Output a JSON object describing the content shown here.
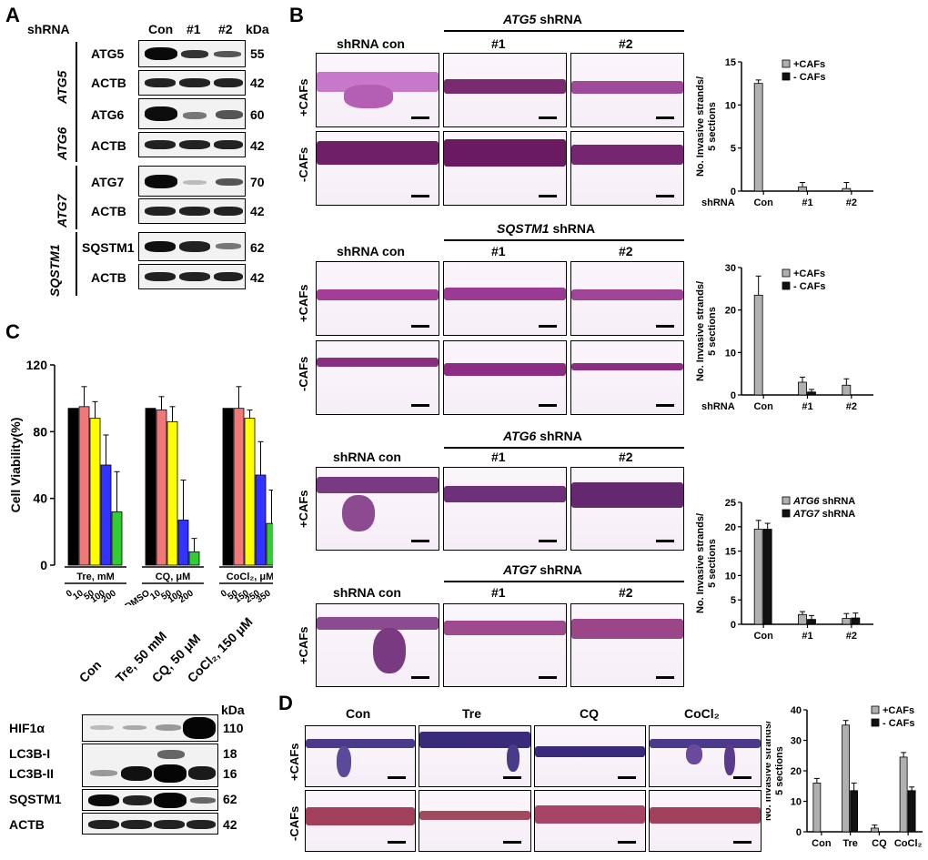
{
  "panels": {
    "A": "A",
    "B": "B",
    "C": "C",
    "D": "D"
  },
  "panel_a": {
    "header": {
      "shrna": "shRNA",
      "con": "Con",
      "n1": "#1",
      "n2": "#2",
      "kda": "kDa"
    },
    "groups": [
      {
        "gene": "ATG5",
        "rows": [
          {
            "label": "ATG5",
            "kda": "55"
          },
          {
            "label": "ACTB",
            "kda": "42"
          }
        ]
      },
      {
        "gene": "ATG6",
        "rows": [
          {
            "label": "ATG6",
            "kda": "60"
          },
          {
            "label": "ACTB",
            "kda": "42"
          }
        ]
      },
      {
        "gene": "ATG7",
        "rows": [
          {
            "label": "ATG7",
            "kda": "70"
          },
          {
            "label": "ACTB",
            "kda": "42"
          }
        ]
      },
      {
        "gene": "SQSTM1",
        "rows": [
          {
            "label": "SQSTM1",
            "kda": "62"
          },
          {
            "label": "ACTB",
            "kda": "42"
          }
        ]
      }
    ]
  },
  "panel_b": {
    "sections": [
      {
        "title_gene": "ATG5",
        "title_suffix": " shRNA",
        "con": "shRNA con",
        "n1": "#1",
        "n2": "#2",
        "row1": "+CAFs",
        "row2": "-CAFs"
      },
      {
        "title_gene": "SQSTM1",
        "title_suffix": " shRNA",
        "con": "shRNA con",
        "n1": "#1",
        "n2": "#2",
        "row1": "+CAFs",
        "row2": "-CAFs"
      },
      {
        "title_gene": "ATG6",
        "title_suffix": " shRNA",
        "con": "shRNA con",
        "n1": "#1",
        "n2": "#2",
        "row1": "+CAFs"
      },
      {
        "title_gene": "ATG7",
        "title_suffix": " shRNA",
        "con": "shRNA con",
        "n1": "#1",
        "n2": "#2",
        "row1": "+CAFs"
      }
    ]
  },
  "panel_c_blot": {
    "lanes": [
      "Con",
      "Tre, 50 mM",
      "CQ, 50 μM",
      "CoCl₂, 150 μM"
    ],
    "kda": "kDa",
    "rows": [
      {
        "label": "HIF1α",
        "kda": "110"
      },
      {
        "label": "LC3B-I",
        "kda": "18"
      },
      {
        "label": "LC3B-II",
        "kda": "16"
      },
      {
        "label": "SQSTM1",
        "kda": "62"
      },
      {
        "label": "ACTB",
        "kda": "42"
      }
    ]
  },
  "panel_d": {
    "columns": [
      "Con",
      "Tre",
      "CQ",
      "CoCl₂"
    ],
    "rows": [
      "+CAFs",
      "-CAFs"
    ]
  },
  "chart_data": [
    {
      "id": "b1",
      "type": "bar",
      "ylabel": "No. Invasive strands/\n5 sections",
      "ylim": [
        0,
        15
      ],
      "yticks": [
        0,
        5,
        10,
        15
      ],
      "xprefix": "shRNA",
      "categories": [
        "Con",
        "#1",
        "#2"
      ],
      "series": [
        {
          "name": "+CAFs",
          "color": "#b0b0b0",
          "values": [
            12.5,
            0.5,
            0.3
          ],
          "errors": [
            0.4,
            0.5,
            0.7
          ]
        },
        {
          "name": "- CAFs",
          "color": "#111111",
          "values": [
            0,
            0,
            0
          ],
          "errors": [
            0,
            0,
            0
          ]
        }
      ],
      "legend": "top-right"
    },
    {
      "id": "b2",
      "type": "bar",
      "ylabel": "No. Invasive strands/\n5 sections",
      "ylim": [
        0,
        30
      ],
      "yticks": [
        0,
        10,
        20,
        30
      ],
      "xprefix": "shRNA",
      "categories": [
        "Con",
        "#1",
        "#2"
      ],
      "series": [
        {
          "name": "+CAFs",
          "color": "#b0b0b0",
          "values": [
            23.5,
            3.0,
            2.3
          ],
          "errors": [
            4.5,
            1.2,
            1.5
          ]
        },
        {
          "name": "- CAFs",
          "color": "#111111",
          "values": [
            0,
            0.7,
            0
          ],
          "errors": [
            0,
            0.6,
            0
          ]
        }
      ],
      "legend": "top-right"
    },
    {
      "id": "b3",
      "type": "bar",
      "ylabel": "No. Invasive strands/\n5 sections",
      "ylim": [
        0,
        25
      ],
      "yticks": [
        0,
        5,
        10,
        15,
        20,
        25
      ],
      "xprefix": "",
      "categories": [
        "Con",
        "#1",
        "#2"
      ],
      "series": [
        {
          "name": "ATG6 shRNA",
          "color": "#b0b0b0",
          "values": [
            19.5,
            2.0,
            1.2
          ],
          "errors": [
            1.8,
            0.6,
            1.0
          ]
        },
        {
          "name": "ATG7 shRNA",
          "color": "#111111",
          "values": [
            19.5,
            1.0,
            1.3
          ],
          "errors": [
            1.2,
            0.8,
            1.0
          ]
        }
      ],
      "legend": "top-right"
    },
    {
      "id": "c",
      "type": "bar",
      "ylabel": "Cell Viability(%)",
      "ylim": [
        0,
        120
      ],
      "yticks": [
        0,
        40,
        80,
        120
      ],
      "groups": [
        {
          "label": "Tre, mM",
          "doses": [
            "0",
            "10",
            "50",
            "100",
            "200"
          ],
          "values": [
            94,
            95,
            88,
            60,
            32
          ],
          "errors": [
            0,
            12,
            10,
            18,
            24
          ]
        },
        {
          "label": "CQ, μM",
          "doses": [
            "DMSO",
            "10",
            "50",
            "100",
            "200"
          ],
          "values": [
            94,
            93,
            86,
            27,
            8
          ],
          "errors": [
            0,
            8,
            9,
            24,
            8
          ]
        },
        {
          "label": "CoCl₂, μM",
          "doses": [
            "0",
            "50",
            "150",
            "250",
            "350"
          ],
          "values": [
            94,
            94,
            88,
            54,
            25
          ],
          "errors": [
            0,
            13,
            5,
            20,
            20
          ]
        }
      ],
      "colors": [
        "#000000",
        "#f07878",
        "#ffff00",
        "#3333ff",
        "#33cc33"
      ]
    },
    {
      "id": "d",
      "type": "bar",
      "ylabel": "No. Invasive strands/\n5 sections",
      "ylim": [
        0,
        40
      ],
      "yticks": [
        0,
        10,
        20,
        30,
        40
      ],
      "categories": [
        "Con",
        "Tre",
        "CQ",
        "CoCl₂"
      ],
      "series": [
        {
          "name": "+CAFs",
          "color": "#b0b0b0",
          "values": [
            16,
            35,
            1.2,
            24.5
          ],
          "errors": [
            1.5,
            1.5,
            1.0,
            1.5
          ]
        },
        {
          "name": "- CAFs",
          "color": "#111111",
          "values": [
            0,
            13.5,
            0,
            13.5
          ],
          "errors": [
            0,
            2.5,
            0,
            1.2
          ]
        }
      ],
      "legend": "top-right"
    }
  ]
}
